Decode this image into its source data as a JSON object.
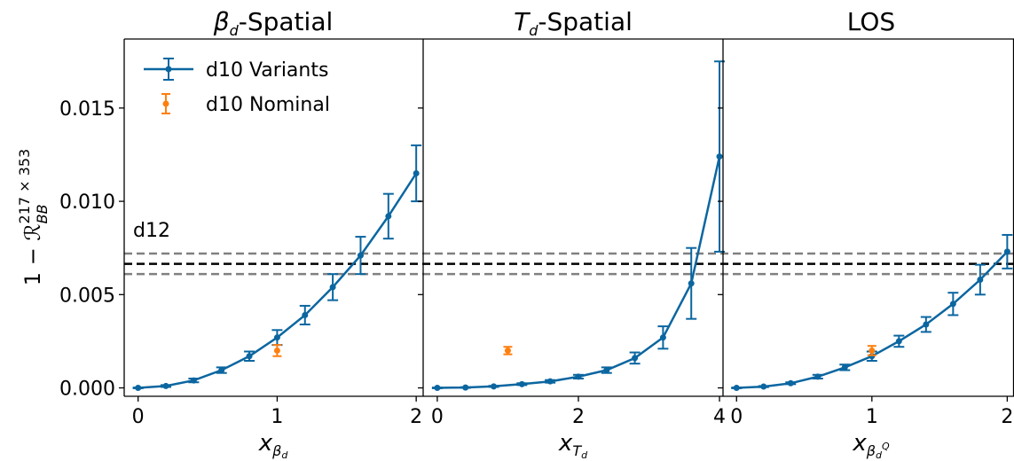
{
  "chart_data": [
    {
      "type": "line",
      "title_base": "β",
      "title_sub": "d",
      "title_rest": "-Spatial",
      "xlabel_base": "x",
      "xlabel_sub": "β",
      "xlabel_subsub": "d",
      "x_ticks": [
        "0",
        "1",
        "2"
      ],
      "xlim": [
        -0.1,
        2.05
      ],
      "series": [
        {
          "name": "d10 Variants",
          "x": [
            0,
            0.2,
            0.4,
            0.6,
            0.8,
            1.0,
            1.2,
            1.4,
            1.6,
            1.8,
            2.0
          ],
          "y": [
            0.0,
            0.0001,
            0.0004,
            0.00095,
            0.0017,
            0.0027,
            0.0039,
            0.0054,
            0.0071,
            0.0092,
            0.0115
          ],
          "yerr": [
            2e-05,
            5e-05,
            0.0001,
            0.00015,
            0.00025,
            0.0004,
            0.0005,
            0.0007,
            0.001,
            0.0012,
            0.0015
          ]
        },
        {
          "name": "d10 Nominal",
          "x": [
            1.0
          ],
          "y": [
            0.002
          ],
          "yerr": [
            0.0003
          ]
        }
      ]
    },
    {
      "type": "line",
      "title_base": "T",
      "title_sub": "d",
      "title_rest": "-Spatial",
      "xlabel_base": "x",
      "xlabel_sub": "T",
      "xlabel_subsub": "d",
      "x_ticks": [
        "0",
        "2",
        "4"
      ],
      "xlim": [
        -0.2,
        4.05
      ],
      "series": [
        {
          "name": "d10 Variants",
          "x": [
            0,
            0.4,
            0.8,
            1.2,
            1.6,
            2.0,
            2.4,
            2.8,
            3.2,
            3.6,
            4.0
          ],
          "y": [
            0.0,
            2e-05,
            8e-05,
            0.0002,
            0.00035,
            0.0006,
            0.00095,
            0.0016,
            0.0027,
            0.0056,
            0.0124
          ],
          "yerr": [
            2e-05,
            2e-05,
            3e-05,
            5e-05,
            7e-05,
            0.0001,
            0.00015,
            0.0003,
            0.0006,
            0.0019,
            0.0051
          ]
        },
        {
          "name": "d10 Nominal",
          "x": [
            1.0
          ],
          "y": [
            0.002
          ],
          "yerr": [
            0.0002
          ]
        }
      ]
    },
    {
      "type": "line",
      "title_base": "LOS",
      "title_sub": "",
      "title_rest": "",
      "xlabel_base": "x",
      "xlabel_sub": "β",
      "xlabel_subsub": "d",
      "xlabel_sup": "Q",
      "x_ticks": [
        "0",
        "1",
        "2"
      ],
      "xlim": [
        -0.1,
        2.05
      ],
      "series": [
        {
          "name": "d10 Variants",
          "x": [
            0,
            0.2,
            0.4,
            0.6,
            0.8,
            1.0,
            1.2,
            1.4,
            1.6,
            1.8,
            2.0
          ],
          "y": [
            0.0,
            7e-05,
            0.00025,
            0.0006,
            0.0011,
            0.0017,
            0.0025,
            0.0034,
            0.0045,
            0.0058,
            0.0073
          ],
          "yerr": [
            2e-05,
            3e-05,
            5e-05,
            0.0001,
            0.00015,
            0.00025,
            0.0003,
            0.0004,
            0.0006,
            0.0008,
            0.0009
          ]
        },
        {
          "name": "d10 Nominal",
          "x": [
            1.0
          ],
          "y": [
            0.002
          ],
          "yerr": [
            0.00025
          ]
        }
      ]
    }
  ],
  "shared": {
    "ylabel": "1 − ℛ",
    "ylabel_sub": "BB",
    "ylabel_sup": "217 × 353",
    "y_ticks": [
      "0.000",
      "0.005",
      "0.010",
      "0.015"
    ],
    "ylim": [
      -0.00045,
      0.0187
    ],
    "reference_annotation": "d12",
    "reference_line": 0.00665,
    "reference_band": [
      0.0061,
      0.0072
    ],
    "legend_position": "upper left (first panel)",
    "colors": {
      "variants": "#0b66a0",
      "nominal": "#ff7f0e",
      "reference": "#000000",
      "band": "#808080"
    }
  }
}
